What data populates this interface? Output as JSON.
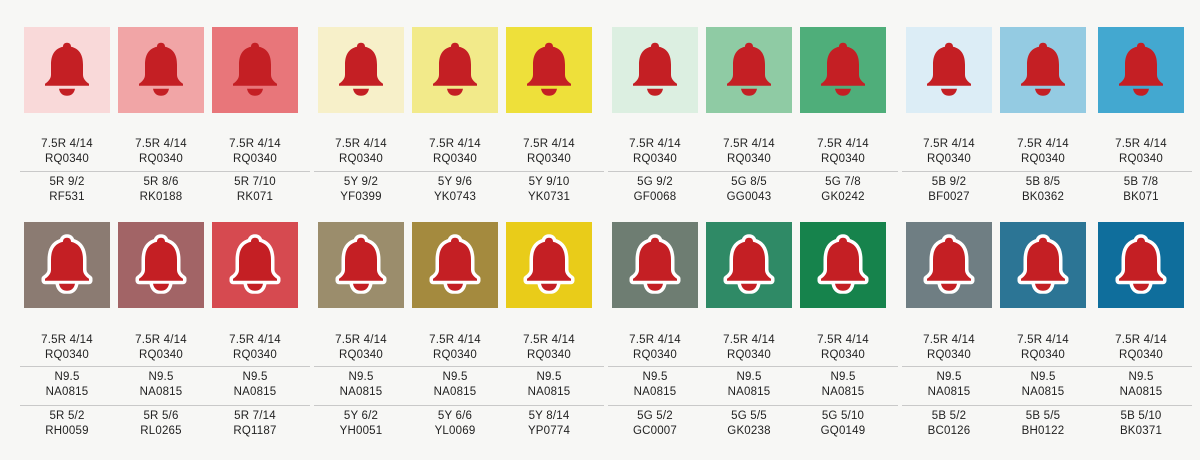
{
  "bell_color": "#c41f24",
  "row1": {
    "tiles": [
      {
        "bg": "#f9d9d9",
        "line1": "7.5R 4/14",
        "line2": "RQ0340",
        "line3": "5R 9/2",
        "line4": "RF531"
      },
      {
        "bg": "#f1a5a6",
        "line1": "7.5R 4/14",
        "line2": "RQ0340",
        "line3": "5R 8/6",
        "line4": "RK0188"
      },
      {
        "bg": "#e8767a",
        "line1": "7.5R 4/14",
        "line2": "RQ0340",
        "line3": "5R 7/10",
        "line4": "RK071"
      },
      {
        "bg": "#f7f0c9",
        "line1": "7.5R 4/14",
        "line2": "RQ0340",
        "line3": "5Y 9/2",
        "line4": "YF0399"
      },
      {
        "bg": "#f2ea8a",
        "line1": "7.5R 4/14",
        "line2": "RQ0340",
        "line3": "5Y 9/6",
        "line4": "YK0743"
      },
      {
        "bg": "#eee03a",
        "line1": "7.5R 4/14",
        "line2": "RQ0340",
        "line3": "5Y 9/10",
        "line4": "YK0731"
      },
      {
        "bg": "#dcefe1",
        "line1": "7.5R 4/14",
        "line2": "RQ0340",
        "line3": "5G 9/2",
        "line4": "GF0068"
      },
      {
        "bg": "#8fcba4",
        "line1": "7.5R 4/14",
        "line2": "RQ0340",
        "line3": "5G 8/5",
        "line4": "GG0043"
      },
      {
        "bg": "#4fae7a",
        "line1": "7.5R 4/14",
        "line2": "RQ0340",
        "line3": "5G 7/8",
        "line4": "GK0242"
      },
      {
        "bg": "#dcedf6",
        "line1": "7.5R 4/14",
        "line2": "RQ0340",
        "line3": "5B 9/2",
        "line4": "BF0027"
      },
      {
        "bg": "#94cbe2",
        "line1": "7.5R 4/14",
        "line2": "RQ0340",
        "line3": "5B 8/5",
        "line4": "BK0362"
      },
      {
        "bg": "#43a8d0",
        "line1": "7.5R 4/14",
        "line2": "RQ0340",
        "line3": "5B 7/8",
        "line4": "BK071"
      }
    ]
  },
  "row2": {
    "tiles": [
      {
        "bg": "#8b7b72",
        "line1": "7.5R 4/14",
        "line2": "RQ0340",
        "line3": "N9.5",
        "line4": "NA0815",
        "line5": "5R 5/2",
        "line6": "RH0059"
      },
      {
        "bg": "#a26466",
        "line1": "7.5R 4/14",
        "line2": "RQ0340",
        "line3": "N9.5",
        "line4": "NA0815",
        "line5": "5R 5/6",
        "line6": "RL0265"
      },
      {
        "bg": "#d64a50",
        "line1": "7.5R 4/14",
        "line2": "RQ0340",
        "line3": "N9.5",
        "line4": "NA0815",
        "line5": "5R 7/14",
        "line6": "RQ1187"
      },
      {
        "bg": "#9b8d6c",
        "line1": "7.5R 4/14",
        "line2": "RQ0340",
        "line3": "N9.5",
        "line4": "NA0815",
        "line5": "5Y 6/2",
        "line6": "YH0051"
      },
      {
        "bg": "#a48a3e",
        "line1": "7.5R 4/14",
        "line2": "RQ0340",
        "line3": "N9.5",
        "line4": "NA0815",
        "line5": "5Y 6/6",
        "line6": "YL0069"
      },
      {
        "bg": "#e9cc19",
        "line1": "7.5R 4/14",
        "line2": "RQ0340",
        "line3": "N9.5",
        "line4": "NA0815",
        "line5": "5Y 8/14",
        "line6": "YP0774"
      },
      {
        "bg": "#6e7d72",
        "line1": "7.5R 4/14",
        "line2": "RQ0340",
        "line3": "N9.5",
        "line4": "NA0815",
        "line5": "5G 5/2",
        "line6": "GC0007"
      },
      {
        "bg": "#2f8a66",
        "line1": "7.5R 4/14",
        "line2": "RQ0340",
        "line3": "N9.5",
        "line4": "NA0815",
        "line5": "5G 5/5",
        "line6": "GK0238"
      },
      {
        "bg": "#16834c",
        "line1": "7.5R 4/14",
        "line2": "RQ0340",
        "line3": "N9.5",
        "line4": "NA0815",
        "line5": "5G 5/10",
        "line6": "GQ0149"
      },
      {
        "bg": "#6f7e83",
        "line1": "7.5R 4/14",
        "line2": "RQ0340",
        "line3": "N9.5",
        "line4": "NA0815",
        "line5": "5B 5/2",
        "line6": "BC0126"
      },
      {
        "bg": "#2c7595",
        "line1": "7.5R 4/14",
        "line2": "RQ0340",
        "line3": "N9.5",
        "line4": "NA0815",
        "line5": "5B 5/5",
        "line6": "BH0122"
      },
      {
        "bg": "#0f6e9c",
        "line1": "7.5R 4/14",
        "line2": "RQ0340",
        "line3": "N9.5",
        "line4": "NA0815",
        "line5": "5B 5/10",
        "line6": "BK0371"
      }
    ]
  }
}
